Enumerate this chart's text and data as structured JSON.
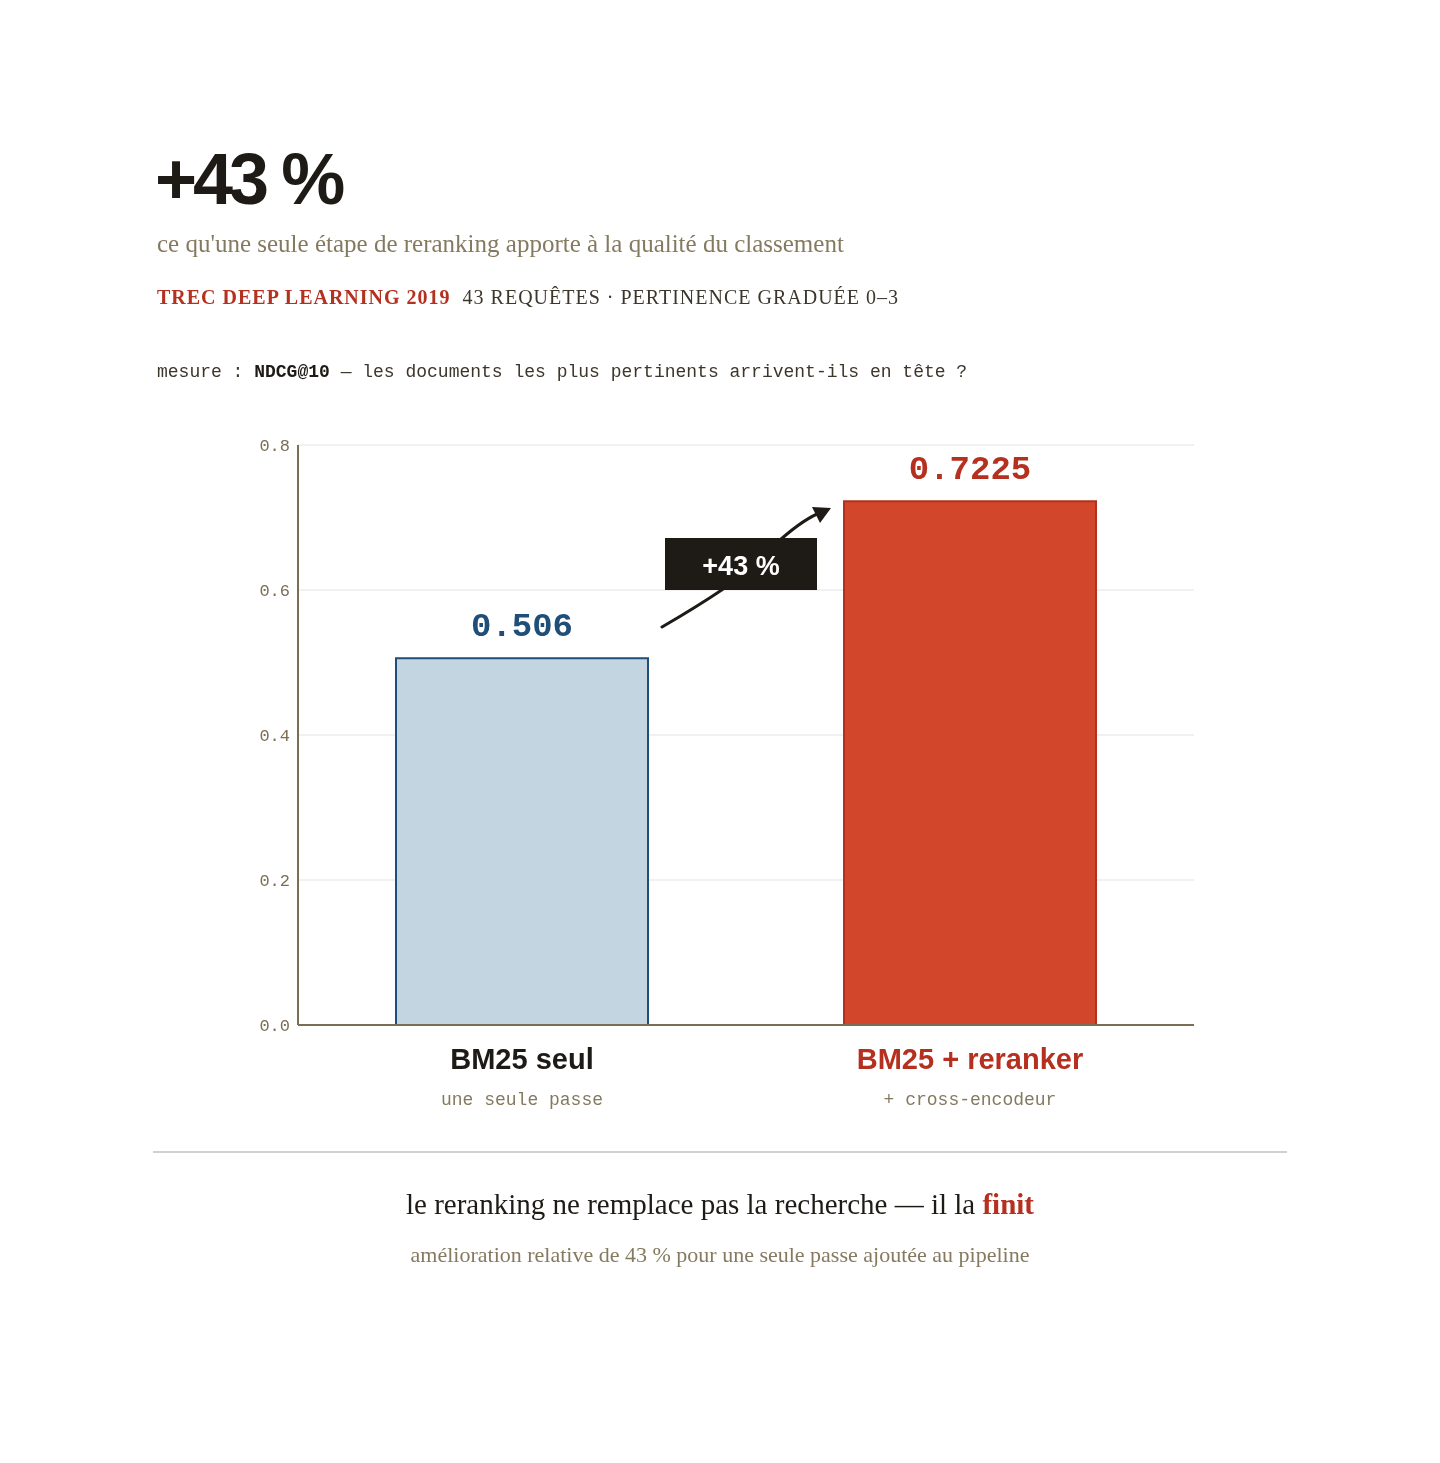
{
  "chart_data": {
    "type": "bar",
    "title": "+43 %",
    "subtitle": "ce qu'une seule étape de reranking apporte à la qualité du classement",
    "annotations": [
      "TREC DEEP LEARNING 2019",
      "43 REQUÊTES · PERTINENCE GRADUÉE 0–3",
      "mesure : NDCG@10 — les documents les plus pertinents arrivent-ils en tête ?",
      "+43 %",
      "le reranking ne remplace pas la recherche — il la finit",
      "amélioration relative de 43 % pour une seule passe ajoutée au pipeline"
    ],
    "categories": [
      "BM25 seul\nune seule passe",
      "BM25 + reranker\n+ cross-encodeur"
    ],
    "values": [
      0.506,
      0.7225
    ],
    "colors": [
      "#c3d5e0",
      "#d2462b"
    ],
    "ylim": [
      0,
      0.8
    ],
    "yticks": [
      {
        "value": 0,
        "label": "0.0"
      },
      {
        "value": 0.2,
        "label": "0.2"
      },
      {
        "value": 0.4,
        "label": "0.4"
      },
      {
        "value": 0.6,
        "label": "0.6"
      },
      {
        "value": 0.8,
        "label": "0.8"
      }
    ],
    "grid": "y",
    "data_labels": true,
    "legend": false
  }
}
